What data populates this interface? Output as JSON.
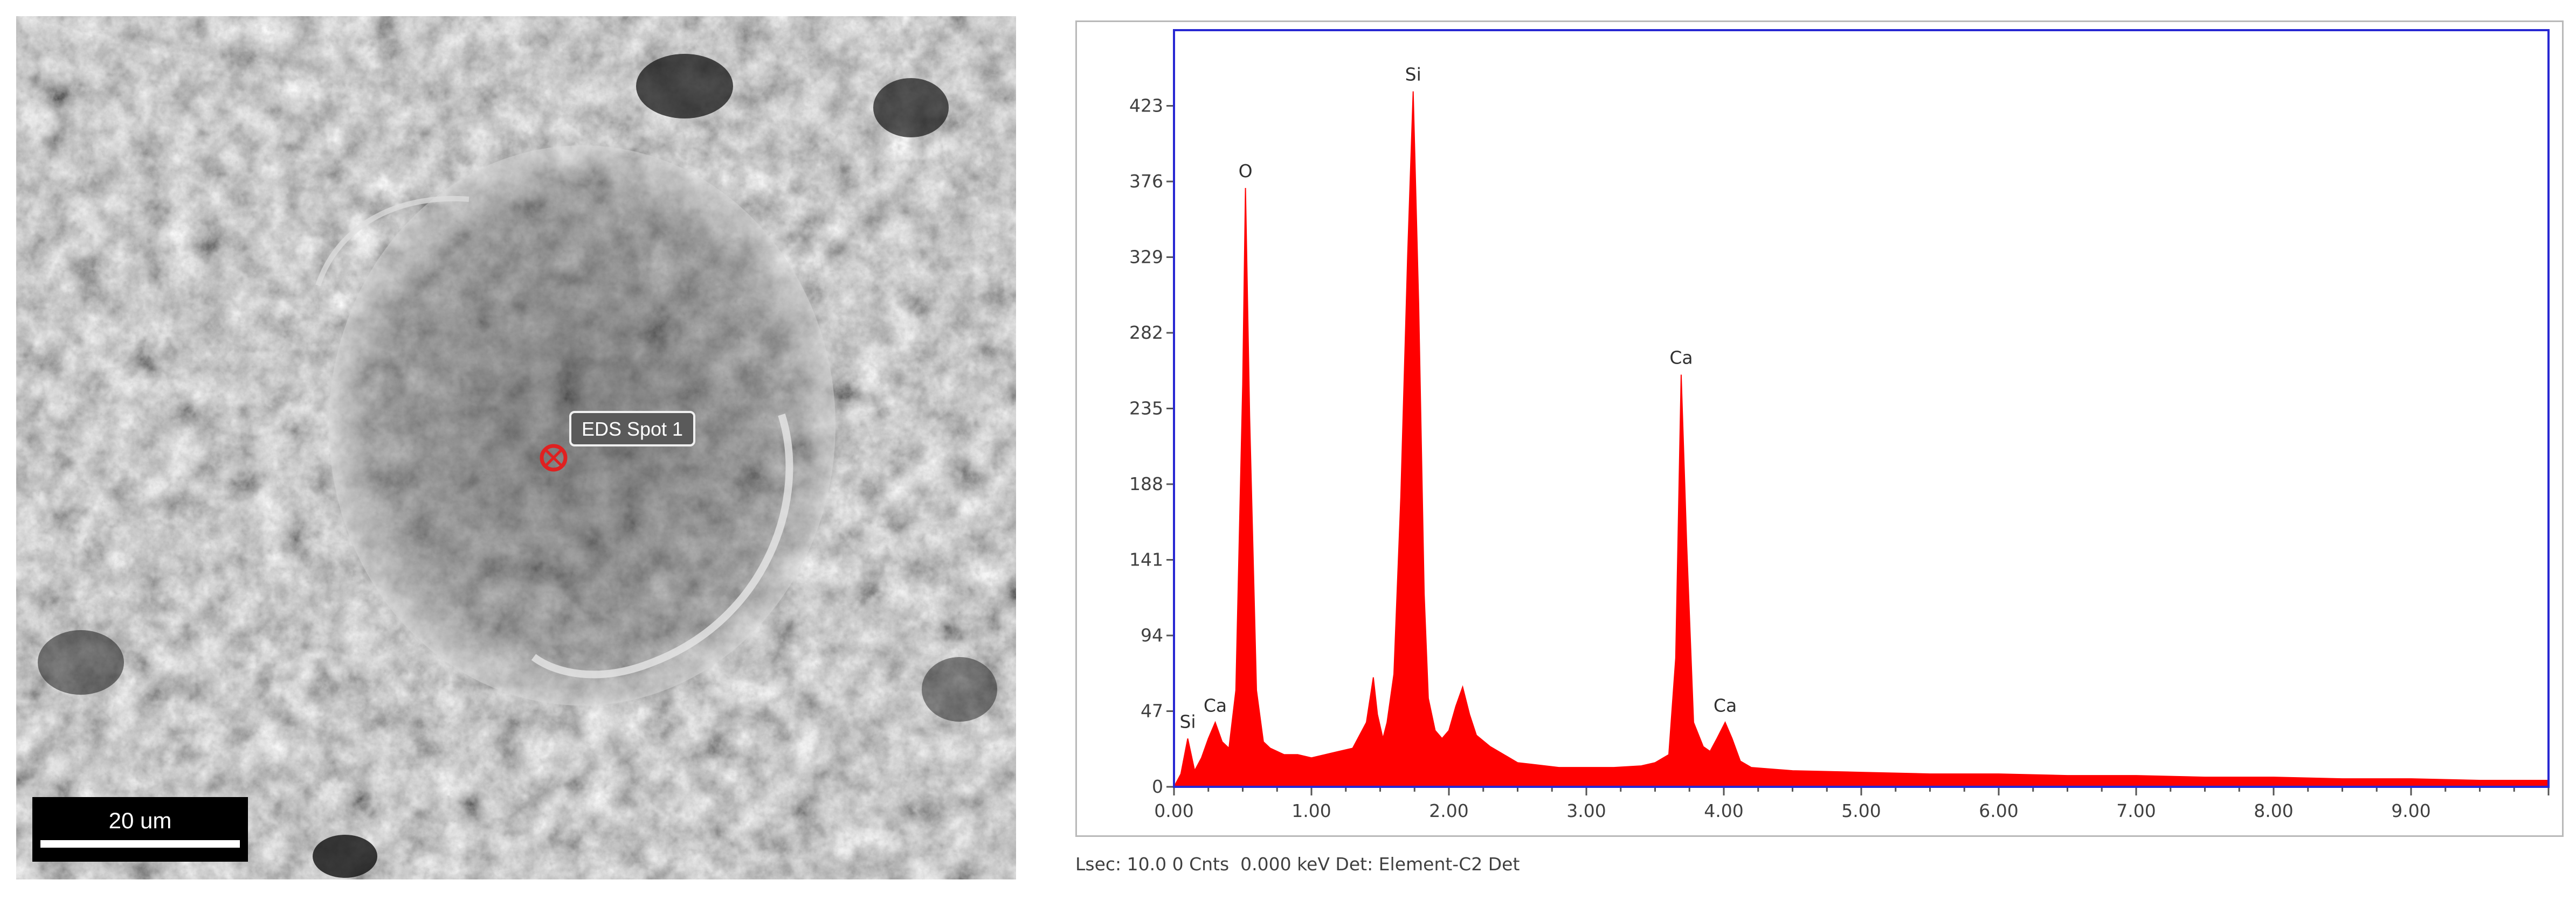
{
  "micrograph": {
    "scale_bar_label": "20 um",
    "spot_label": "EDS Spot 1"
  },
  "status": {
    "text": "Lsec: 10.0 0 Cnts  0.000 keV Det: Element-C2 Det"
  },
  "chart_data": {
    "type": "line",
    "title": "",
    "xlabel": "",
    "ylabel": "",
    "xlim": [
      0,
      10
    ],
    "ylim": [
      0,
      470
    ],
    "x_ticks": [
      "0.00",
      "1.00",
      "2.00",
      "3.00",
      "4.00",
      "5.00",
      "6.00",
      "7.00",
      "8.00",
      "9.00"
    ],
    "y_ticks": [
      "0",
      "47",
      "94",
      "141",
      "188",
      "235",
      "282",
      "329",
      "376",
      "423"
    ],
    "series_color": "#ff0000",
    "frame_color": "#2828d2",
    "peaks": [
      {
        "label": "Si",
        "x": 0.1,
        "y": 30
      },
      {
        "label": "Ca",
        "x": 0.3,
        "y": 40
      },
      {
        "label": "O",
        "x": 0.52,
        "y": 372
      },
      {
        "label": "Si",
        "x": 1.74,
        "y": 432
      },
      {
        "label": "Ca",
        "x": 3.69,
        "y": 256
      },
      {
        "label": "Ca",
        "x": 4.01,
        "y": 40
      }
    ],
    "series": [
      {
        "x": [
          0.0,
          0.05,
          0.1,
          0.15,
          0.2,
          0.25,
          0.3,
          0.35,
          0.4,
          0.45,
          0.5,
          0.52,
          0.55,
          0.6,
          0.65,
          0.7,
          0.8,
          0.9,
          1.0,
          1.1,
          1.2,
          1.3,
          1.4,
          1.45,
          1.48,
          1.52,
          1.55,
          1.6,
          1.65,
          1.7,
          1.74,
          1.78,
          1.82,
          1.85,
          1.9,
          1.95,
          2.0,
          2.05,
          2.1,
          2.15,
          2.2,
          2.3,
          2.4,
          2.5,
          2.6,
          2.8,
          3.0,
          3.2,
          3.4,
          3.5,
          3.6,
          3.65,
          3.69,
          3.73,
          3.78,
          3.85,
          3.9,
          3.95,
          4.01,
          4.06,
          4.12,
          4.2,
          4.5,
          5.0,
          5.5,
          6.0,
          6.5,
          7.0,
          7.5,
          8.0,
          8.5,
          9.0,
          9.5,
          10.0
        ],
        "y": [
          0,
          8,
          30,
          10,
          18,
          30,
          40,
          28,
          24,
          60,
          250,
          372,
          230,
          60,
          28,
          24,
          20,
          20,
          18,
          20,
          22,
          24,
          40,
          68,
          45,
          30,
          40,
          70,
          180,
          330,
          432,
          300,
          120,
          55,
          35,
          30,
          35,
          50,
          62,
          45,
          32,
          25,
          20,
          15,
          14,
          12,
          12,
          12,
          13,
          15,
          20,
          80,
          256,
          150,
          40,
          25,
          22,
          30,
          40,
          30,
          16,
          12,
          10,
          9,
          8,
          8,
          7,
          7,
          6,
          6,
          5,
          5,
          4,
          4
        ]
      }
    ]
  }
}
